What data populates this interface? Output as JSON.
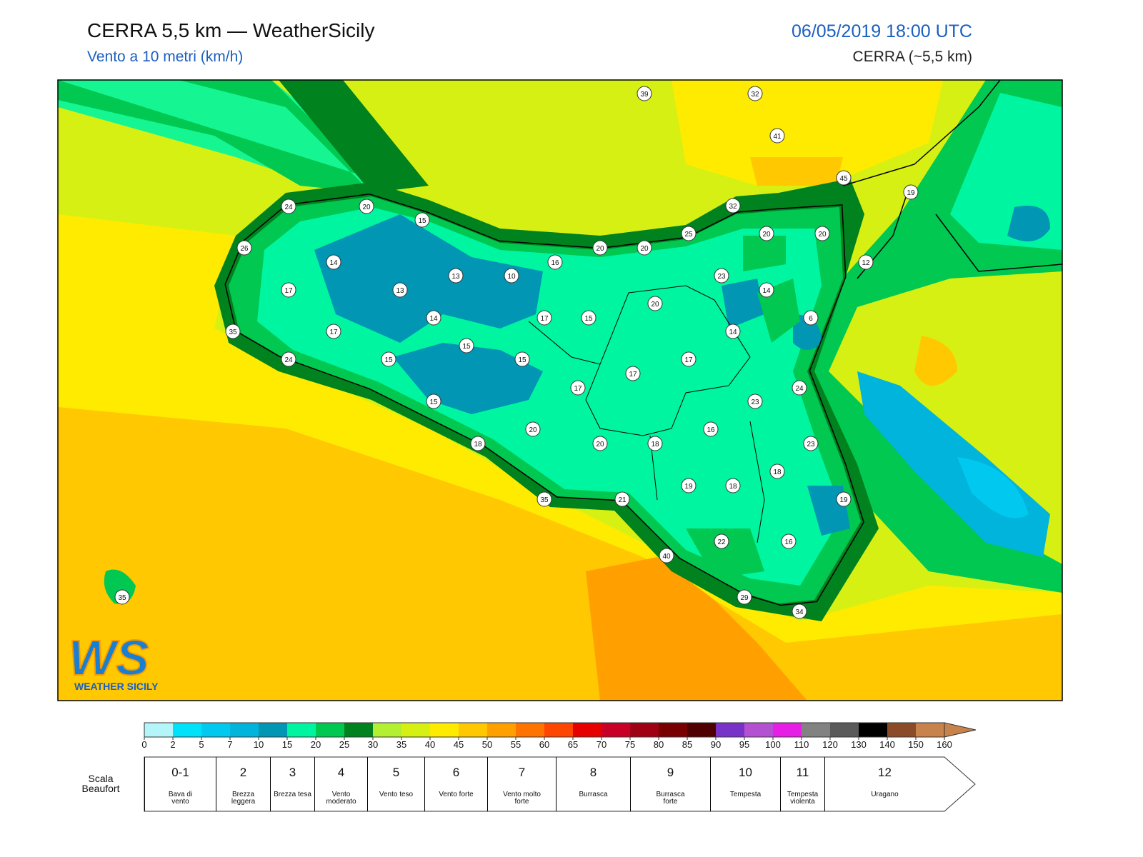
{
  "header": {
    "title": "CERRA 5,5 km — WeatherSicily",
    "subtitle": "Vento a 10 metri (km/h)",
    "datetime": "06/05/2019 18:00 UTC",
    "model": "CERRA (~5,5 km)"
  },
  "map": {
    "stations": [
      39,
      32,
      41,
      45,
      19,
      24,
      20,
      15,
      32,
      25,
      20,
      20,
      26,
      20,
      20,
      14,
      16,
      13,
      10,
      23,
      12,
      17,
      13,
      14,
      20,
      14,
      17,
      15,
      6,
      35,
      17,
      14,
      15,
      24,
      15,
      15,
      17,
      17,
      24,
      17,
      23,
      15,
      16,
      20,
      18,
      20,
      18,
      23,
      18,
      19,
      18,
      35,
      21,
      19,
      22,
      16,
      40,
      29,
      34,
      35
    ]
  },
  "logo": {
    "mark": "WS",
    "text": "WEATHER SICILY"
  },
  "colorbar": {
    "ticks": [
      0,
      2,
      5,
      7,
      10,
      15,
      20,
      25,
      30,
      35,
      40,
      45,
      50,
      55,
      60,
      65,
      70,
      75,
      80,
      85,
      90,
      95,
      100,
      110,
      120,
      130,
      140,
      150,
      160
    ],
    "colors": [
      "#b4f5fa",
      "#00e1fa",
      "#00c8ee",
      "#00b4dc",
      "#0096b4",
      "#00f5a0",
      "#00c850",
      "#00821e",
      "#b4f032",
      "#d7f014",
      "#ffeb00",
      "#ffc800",
      "#ffa000",
      "#ff7300",
      "#ff4600",
      "#e60000",
      "#c80028",
      "#a00014",
      "#780000",
      "#500000",
      "#7832c8",
      "#b450d2",
      "#e61ee6",
      "#828282",
      "#5a5a5a",
      "#000000",
      "#8c4b28",
      "#c8824b"
    ]
  },
  "beaufort": {
    "label": "Scala Beaufort",
    "levels": [
      {
        "number": "0-1",
        "description": "Bava di vento"
      },
      {
        "number": 2,
        "description": "Brezza leggera"
      },
      {
        "number": 3,
        "description": "Brezza tesa"
      },
      {
        "number": 4,
        "description": "Vento moderato"
      },
      {
        "number": 5,
        "description": "Vento teso"
      },
      {
        "number": 6,
        "description": "Vento forte"
      },
      {
        "number": 7,
        "description": "Vento molto forte"
      },
      {
        "number": 8,
        "description": "Burrasca"
      },
      {
        "number": 9,
        "description": "Burrasca forte"
      },
      {
        "number": 10,
        "description": "Tempesta"
      },
      {
        "number": 11,
        "description": "Tempesta violenta"
      },
      {
        "number": 12,
        "description": "Uragano"
      }
    ]
  }
}
